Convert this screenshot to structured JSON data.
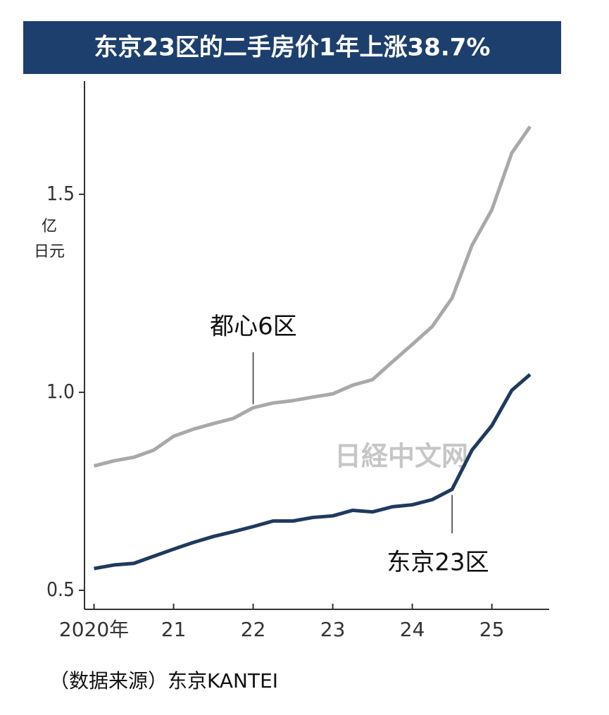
{
  "chart_data": {
    "type": "line",
    "title": "东京23区的二手房价1年上涨38.7%",
    "ylabel_lines": [
      "亿",
      "日元"
    ],
    "source": "（数据来源）东京KANTEI",
    "watermark": "日経中文网",
    "x": [
      2020,
      2020.25,
      2020.5,
      2020.75,
      2021,
      2021.25,
      2021.5,
      2021.75,
      2022,
      2022.25,
      2022.5,
      2022.75,
      2023,
      2023.25,
      2023.5,
      2023.75,
      2024,
      2024.25,
      2024.5,
      2024.75,
      2025,
      2025.25,
      2025.48
    ],
    "series": [
      {
        "name": "都心6区",
        "color": "#a9a9a9",
        "values": [
          0.814,
          0.827,
          0.836,
          0.854,
          0.889,
          0.907,
          0.921,
          0.934,
          0.961,
          0.973,
          0.979,
          0.988,
          0.996,
          1.018,
          1.032,
          1.077,
          1.121,
          1.166,
          1.238,
          1.371,
          1.461,
          1.604,
          1.671
        ]
      },
      {
        "name": "东京23区",
        "color": "#1f3a5f",
        "values": [
          0.555,
          0.564,
          0.568,
          0.586,
          0.604,
          0.621,
          0.636,
          0.648,
          0.661,
          0.675,
          0.675,
          0.684,
          0.688,
          0.702,
          0.698,
          0.711,
          0.716,
          0.729,
          0.755,
          0.854,
          0.916,
          1.005,
          1.045
        ]
      }
    ],
    "xlim": [
      2019.88,
      2025.72
    ],
    "xticks": [
      {
        "value": 2020,
        "label": "2020年"
      },
      {
        "value": 2021,
        "label": "21"
      },
      {
        "value": 2022,
        "label": "22"
      },
      {
        "value": 2023,
        "label": "23"
      },
      {
        "value": 2024,
        "label": "24"
      },
      {
        "value": 2025,
        "label": "25"
      }
    ],
    "ylim": [
      0.452,
      1.786
    ],
    "yticks": [
      0.5,
      {
        "value": 1,
        "label": "1.0"
      },
      1.5
    ]
  }
}
